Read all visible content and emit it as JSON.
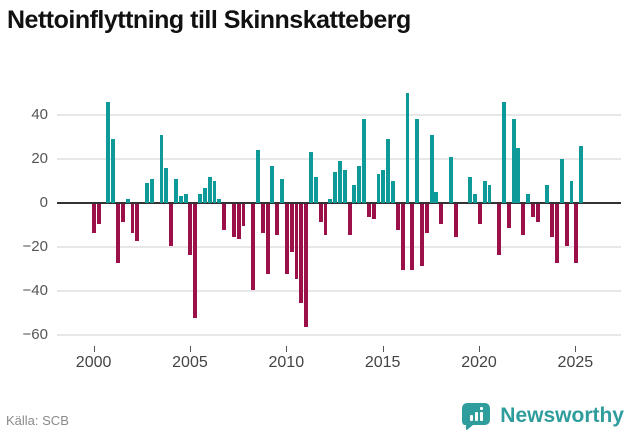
{
  "title": "Nettoinflyttning till Skinnskatteberg",
  "footer": {
    "source": "Källa: SCB"
  },
  "logo": {
    "text": "Newsworthy",
    "icon": "bar-chart-speech-bubble-icon"
  },
  "colors": {
    "positive": "#0f9a9a",
    "negative": "#9c104a",
    "title": "#111111",
    "axis_label": "#555555",
    "gridline": "#e7e7e7",
    "zero_line": "#333333",
    "source_text": "#8a8a8a",
    "logo_teal": "#2f9d9c",
    "background": "#ffffff"
  },
  "chart_data": {
    "type": "bar",
    "title": "Nettoinflyttning till Skinnskatteberg",
    "frequency": "quarterly",
    "start_year": 2000,
    "start_quarter": 1,
    "values": [
      -13,
      -9,
      0,
      46,
      29,
      -27,
      -8,
      2,
      -13,
      -17,
      0,
      9,
      11,
      0,
      31,
      16,
      -19,
      11,
      3,
      4,
      -23,
      -52,
      4,
      7,
      12,
      10,
      2,
      -12,
      0,
      -15,
      -16,
      -10,
      0,
      -39,
      24,
      -13,
      -32,
      17,
      -14,
      11,
      -32,
      -22,
      -34,
      -45,
      -56,
      23,
      12,
      -8,
      -14,
      2,
      14,
      19,
      15,
      -14,
      8,
      17,
      38,
      -6,
      -7,
      13,
      15,
      29,
      10,
      -12,
      -30,
      50,
      -30,
      38,
      -28,
      -13,
      31,
      5,
      -9,
      0,
      21,
      -15,
      0,
      0,
      12,
      4,
      -9,
      10,
      8,
      0,
      -23,
      46,
      -11,
      38,
      25,
      -14,
      4,
      -6,
      -8,
      0,
      8,
      -15,
      -27,
      20,
      -19,
      10,
      -27,
      26
    ],
    "yticks": [
      40,
      20,
      0,
      -20,
      -40,
      -60
    ],
    "ytick_labels": [
      "40",
      "20",
      "0",
      "−20",
      "−40",
      "−60"
    ],
    "xticks": [
      2000,
      2005,
      2010,
      2015,
      2020,
      2025
    ],
    "xtick_labels": [
      "2000",
      "2005",
      "2010",
      "2015",
      "2020",
      "2025"
    ],
    "ylim": [
      -60,
      50
    ],
    "grid": true,
    "legend": false
  }
}
